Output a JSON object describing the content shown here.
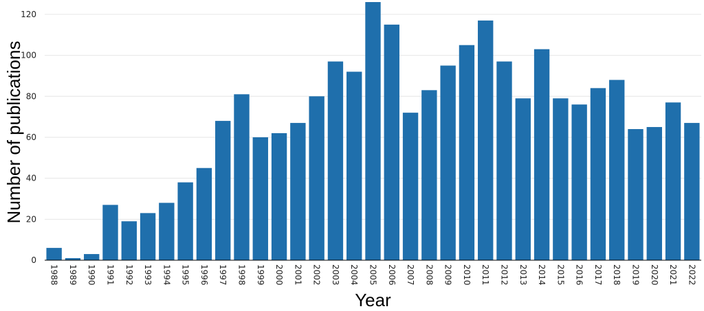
{
  "chart_data": {
    "type": "bar",
    "title": "",
    "xlabel": "Year",
    "ylabel": "Number of publications",
    "ylim": [
      0,
      125
    ],
    "yticks": [
      0,
      20,
      40,
      60,
      80,
      100,
      120
    ],
    "grid": true,
    "bar_color": "#1f6fac",
    "categories": [
      "1988",
      "1989",
      "1990",
      "1991",
      "1992",
      "1993",
      "1994",
      "1995",
      "1996",
      "1997",
      "1998",
      "1999",
      "2000",
      "2001",
      "2002",
      "2003",
      "2004",
      "2005",
      "2006",
      "2007",
      "2008",
      "2009",
      "2010",
      "2011",
      "2012",
      "2013",
      "2014",
      "2015",
      "2016",
      "2017",
      "2018",
      "2019",
      "2020",
      "2021",
      "2022"
    ],
    "values": [
      6,
      1,
      3,
      27,
      19,
      23,
      28,
      38,
      45,
      68,
      81,
      60,
      62,
      67,
      80,
      97,
      92,
      126,
      115,
      72,
      83,
      95,
      105,
      117,
      97,
      79,
      103,
      79,
      76,
      84,
      88,
      64,
      65,
      77,
      67
    ]
  }
}
